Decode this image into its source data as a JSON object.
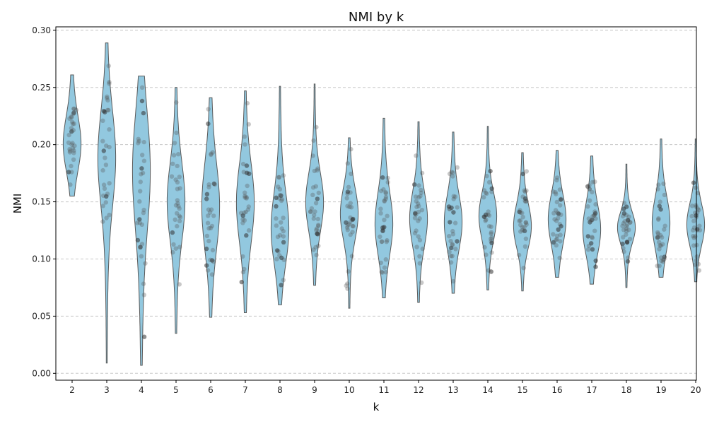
{
  "chart_data": {
    "type": "violin",
    "title": "NMI by k",
    "xlabel": "k",
    "ylabel": "NMI",
    "ylim": [
      -0.006,
      0.303
    ],
    "yticks": [
      "0.00",
      "0.05",
      "0.10",
      "0.15",
      "0.20",
      "0.25",
      "0.30"
    ],
    "grid": "y-dashed",
    "colors": {
      "violin_fill": "#92c8df",
      "violin_edge": "#5a5a5a",
      "point": "#555555"
    },
    "violins": [
      {
        "k": "2",
        "min": 0.155,
        "max": 0.261,
        "median": 0.205,
        "q1": 0.19,
        "q3": 0.225,
        "mode": 0.2
      },
      {
        "k": "3",
        "min": 0.009,
        "max": 0.289,
        "median": 0.18,
        "q1": 0.145,
        "q3": 0.205,
        "mode": 0.19
      },
      {
        "k": "4",
        "min": 0.007,
        "max": 0.26,
        "median": 0.16,
        "q1": 0.115,
        "q3": 0.19,
        "mode": 0.18
      },
      {
        "k": "5",
        "min": 0.035,
        "max": 0.25,
        "median": 0.15,
        "q1": 0.125,
        "q3": 0.175,
        "mode": 0.15
      },
      {
        "k": "6",
        "min": 0.049,
        "max": 0.241,
        "median": 0.15,
        "q1": 0.13,
        "q3": 0.185,
        "mode": 0.145
      },
      {
        "k": "7",
        "min": 0.053,
        "max": 0.247,
        "median": 0.145,
        "q1": 0.12,
        "q3": 0.17,
        "mode": 0.15
      },
      {
        "k": "8",
        "min": 0.06,
        "max": 0.251,
        "median": 0.135,
        "q1": 0.115,
        "q3": 0.16,
        "mode": 0.125
      },
      {
        "k": "9",
        "min": 0.077,
        "max": 0.253,
        "median": 0.148,
        "q1": 0.128,
        "q3": 0.165,
        "mode": 0.15
      },
      {
        "k": "10",
        "min": 0.057,
        "max": 0.206,
        "median": 0.138,
        "q1": 0.122,
        "q3": 0.155,
        "mode": 0.14
      },
      {
        "k": "11",
        "min": 0.066,
        "max": 0.223,
        "median": 0.135,
        "q1": 0.115,
        "q3": 0.155,
        "mode": 0.13
      },
      {
        "k": "12",
        "min": 0.062,
        "max": 0.22,
        "median": 0.135,
        "q1": 0.115,
        "q3": 0.15,
        "mode": 0.135
      },
      {
        "k": "13",
        "min": 0.07,
        "max": 0.211,
        "median": 0.133,
        "q1": 0.12,
        "q3": 0.155,
        "mode": 0.132
      },
      {
        "k": "14",
        "min": 0.073,
        "max": 0.216,
        "median": 0.135,
        "q1": 0.12,
        "q3": 0.15,
        "mode": 0.138
      },
      {
        "k": "15",
        "min": 0.072,
        "max": 0.193,
        "median": 0.133,
        "q1": 0.122,
        "q3": 0.15,
        "mode": 0.128
      },
      {
        "k": "16",
        "min": 0.084,
        "max": 0.195,
        "median": 0.133,
        "q1": 0.12,
        "q3": 0.152,
        "mode": 0.135
      },
      {
        "k": "17",
        "min": 0.078,
        "max": 0.19,
        "median": 0.13,
        "q1": 0.118,
        "q3": 0.15,
        "mode": 0.125
      },
      {
        "k": "18",
        "min": 0.075,
        "max": 0.183,
        "median": 0.125,
        "q1": 0.112,
        "q3": 0.132,
        "mode": 0.128
      },
      {
        "k": "19",
        "min": 0.084,
        "max": 0.205,
        "median": 0.13,
        "q1": 0.115,
        "q3": 0.148,
        "mode": 0.132
      },
      {
        "k": "20",
        "min": 0.08,
        "max": 0.205,
        "median": 0.13,
        "q1": 0.118,
        "q3": 0.145,
        "mode": 0.13
      }
    ]
  }
}
